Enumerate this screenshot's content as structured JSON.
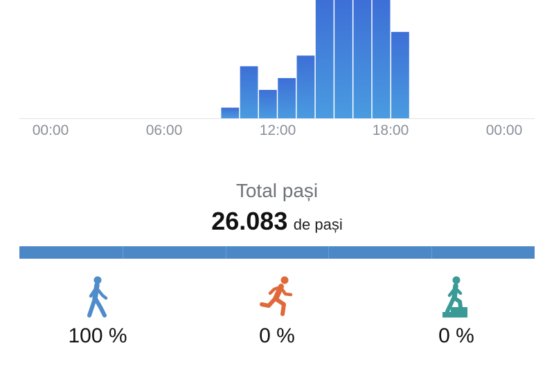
{
  "chart_data": {
    "type": "bar",
    "x_unit": "hour",
    "xlim": [
      0,
      24
    ],
    "ylim": [
      0,
      100
    ],
    "x_tick_labels": [
      "00:00",
      "06:00",
      "12:00",
      "18:00",
      "00:00"
    ],
    "bars": [
      {
        "hour": 9,
        "value": 9
      },
      {
        "hour": 10,
        "value": 44
      },
      {
        "hour": 11,
        "value": 24
      },
      {
        "hour": 12,
        "value": 34
      },
      {
        "hour": 13,
        "value": 53
      },
      {
        "hour": 14,
        "value": 100
      },
      {
        "hour": 15,
        "value": 100
      },
      {
        "hour": 16,
        "value": 100
      },
      {
        "hour": 17,
        "value": 100
      },
      {
        "hour": 18,
        "value": 73
      }
    ],
    "bar_color_top": "#3d6fd6",
    "bar_color_bottom": "#4a9be0"
  },
  "summary": {
    "total_label": "Total pași",
    "total_value": "26.083",
    "total_unit": "de pași"
  },
  "split_bar": {
    "color": "#4d88c6",
    "segments": 5
  },
  "activities": [
    {
      "icon": "walking-icon",
      "percent": "100 %",
      "color": "#4f8cc9"
    },
    {
      "icon": "running-icon",
      "percent": "0 %",
      "color": "#e0693a"
    },
    {
      "icon": "stairs-climbing-icon",
      "percent": "0 %",
      "color": "#3a9a96"
    }
  ]
}
